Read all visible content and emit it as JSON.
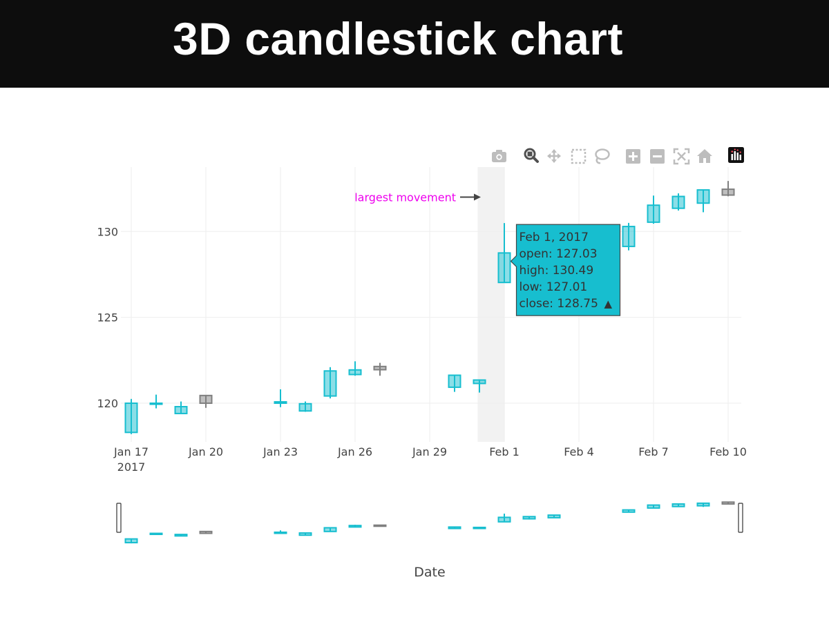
{
  "banner": {
    "title": "3D candlestick chart"
  },
  "modebar": {
    "icons": [
      "camera-icon",
      "zoom-icon",
      "pan-icon",
      "box-select-icon",
      "lasso-icon",
      "zoom-in-icon",
      "zoom-out-icon",
      "autoscale-icon",
      "reset-axes-icon",
      "plotly-logo-icon"
    ]
  },
  "colors": {
    "increasing": "#17becf",
    "increasing_fill": "rgba(23,190,207,0.5)",
    "decreasing": "#7f7f7f",
    "decreasing_fill": "rgba(127,127,127,0.5)",
    "annotation": "#ee00ee",
    "hover_bg": "#17becf",
    "highlight_band": "#f2f2f2",
    "grid": "#eeeeee"
  },
  "chart_data": {
    "type": "candlestick",
    "xlabel": "Date",
    "ylabel": "",
    "x_ticks": [
      {
        "date": "2017-01-17",
        "label": "Jan 17",
        "sublabel": "2017"
      },
      {
        "date": "2017-01-20",
        "label": "Jan 20"
      },
      {
        "date": "2017-01-23",
        "label": "Jan 23"
      },
      {
        "date": "2017-01-26",
        "label": "Jan 26"
      },
      {
        "date": "2017-01-29",
        "label": "Jan 29"
      },
      {
        "date": "2017-02-01",
        "label": "Feb 1"
      },
      {
        "date": "2017-02-04",
        "label": "Feb 4"
      },
      {
        "date": "2017-02-07",
        "label": "Feb 7"
      },
      {
        "date": "2017-02-10",
        "label": "Feb 10"
      }
    ],
    "y_ticks": [
      120,
      125,
      130
    ],
    "ylim": [
      117.75,
      133.75
    ],
    "xlim": [
      "2017-01-17",
      "2017-02-10"
    ],
    "candles": [
      {
        "date": "2017-01-17",
        "open": 118.3,
        "high": 120.25,
        "low": 118.2,
        "close": 120.0
      },
      {
        "date": "2017-01-18",
        "open": 120.0,
        "high": 120.5,
        "low": 119.7,
        "close": 120.0
      },
      {
        "date": "2017-01-19",
        "open": 119.4,
        "high": 120.1,
        "low": 119.4,
        "close": 119.8
      },
      {
        "date": "2017-01-20",
        "open": 120.45,
        "high": 120.45,
        "low": 119.73,
        "close": 120.0
      },
      {
        "date": "2017-01-23",
        "open": 120.0,
        "high": 120.81,
        "low": 119.77,
        "close": 120.08
      },
      {
        "date": "2017-01-24",
        "open": 119.55,
        "high": 120.1,
        "low": 119.5,
        "close": 119.97
      },
      {
        "date": "2017-01-25",
        "open": 120.42,
        "high": 122.1,
        "low": 120.28,
        "close": 121.88
      },
      {
        "date": "2017-01-26",
        "open": 121.67,
        "high": 122.44,
        "low": 121.6,
        "close": 121.94
      },
      {
        "date": "2017-01-27",
        "open": 122.14,
        "high": 122.35,
        "low": 121.6,
        "close": 121.95
      },
      {
        "date": "2017-01-30",
        "open": 120.93,
        "high": 121.63,
        "low": 120.66,
        "close": 121.63
      },
      {
        "date": "2017-01-31",
        "open": 121.15,
        "high": 121.39,
        "low": 120.62,
        "close": 121.35
      },
      {
        "date": "2017-02-01",
        "open": 127.03,
        "high": 130.49,
        "low": 127.01,
        "close": 128.75
      },
      {
        "date": "2017-02-06",
        "open": 129.13,
        "high": 130.5,
        "low": 128.9,
        "close": 130.29
      },
      {
        "date": "2017-02-07",
        "open": 130.54,
        "high": 132.09,
        "low": 130.45,
        "close": 131.53
      },
      {
        "date": "2017-02-08",
        "open": 131.35,
        "high": 132.22,
        "low": 131.22,
        "close": 132.04
      },
      {
        "date": "2017-02-09",
        "open": 131.65,
        "high": 132.45,
        "low": 131.12,
        "close": 132.42
      },
      {
        "date": "2017-02-10",
        "open": 132.46,
        "high": 132.94,
        "low": 132.05,
        "close": 132.12
      }
    ],
    "range_slider": {
      "candles": [
        {
          "date": "2017-01-17",
          "open": 118.3,
          "high": 118.8,
          "low": 118.2,
          "close": 118.8
        },
        {
          "date": "2017-01-18",
          "open": 119.55,
          "high": 119.6,
          "low": 119.5,
          "close": 119.55
        },
        {
          "date": "2017-01-19",
          "open": 119.2,
          "high": 119.4,
          "low": 119.2,
          "close": 119.4
        },
        {
          "date": "2017-01-20",
          "open": 119.8,
          "high": 119.8,
          "low": 119.55,
          "close": 119.55
        },
        {
          "date": "2017-01-23",
          "open": 119.55,
          "high": 119.95,
          "low": 119.5,
          "close": 119.7
        },
        {
          "date": "2017-01-24",
          "open": 119.3,
          "high": 119.6,
          "low": 119.3,
          "close": 119.6
        },
        {
          "date": "2017-01-25",
          "open": 119.8,
          "high": 120.3,
          "low": 119.8,
          "close": 120.3
        },
        {
          "date": "2017-01-26",
          "open": 120.4,
          "high": 120.7,
          "low": 120.4,
          "close": 120.6
        },
        {
          "date": "2017-01-27",
          "open": 120.65,
          "high": 120.65,
          "low": 120.5,
          "close": 120.5
        },
        {
          "date": "2017-01-30",
          "open": 120.2,
          "high": 120.4,
          "low": 120.2,
          "close": 120.4
        },
        {
          "date": "2017-01-31",
          "open": 120.2,
          "high": 120.35,
          "low": 120.15,
          "close": 120.35
        },
        {
          "date": "2017-02-01",
          "open": 121.1,
          "high": 122.2,
          "low": 121.1,
          "close": 121.7
        },
        {
          "date": "2017-02-02",
          "open": 121.5,
          "high": 121.85,
          "low": 121.4,
          "close": 121.8
        },
        {
          "date": "2017-02-03",
          "open": 121.65,
          "high": 122.0,
          "low": 121.6,
          "close": 122.0
        },
        {
          "date": "2017-02-06",
          "open": 122.4,
          "high": 122.7,
          "low": 122.4,
          "close": 122.7
        },
        {
          "date": "2017-02-07",
          "open": 122.95,
          "high": 123.35,
          "low": 122.95,
          "close": 123.35
        },
        {
          "date": "2017-02-08",
          "open": 123.15,
          "high": 123.5,
          "low": 123.15,
          "close": 123.5
        },
        {
          "date": "2017-02-09",
          "open": 123.25,
          "high": 123.65,
          "low": 123.1,
          "close": 123.6
        },
        {
          "date": "2017-02-10",
          "open": 123.75,
          "high": 123.75,
          "low": 123.5,
          "close": 123.5
        }
      ],
      "ylim": [
        117.0,
        126.0
      ]
    },
    "highlight": {
      "x0": "2017-01-31",
      "x1": "2017-02-01"
    },
    "annotation": {
      "text": "largest movement",
      "date": "2017-01-31",
      "y": 132.0
    },
    "hover": {
      "date": "2017-02-01",
      "lines": [
        "Feb 1, 2017",
        "open: 127.03",
        "high: 130.49",
        "low: 127.01",
        "close: 128.75"
      ],
      "arrow": "▲"
    },
    "grid": true,
    "legend": "none"
  }
}
